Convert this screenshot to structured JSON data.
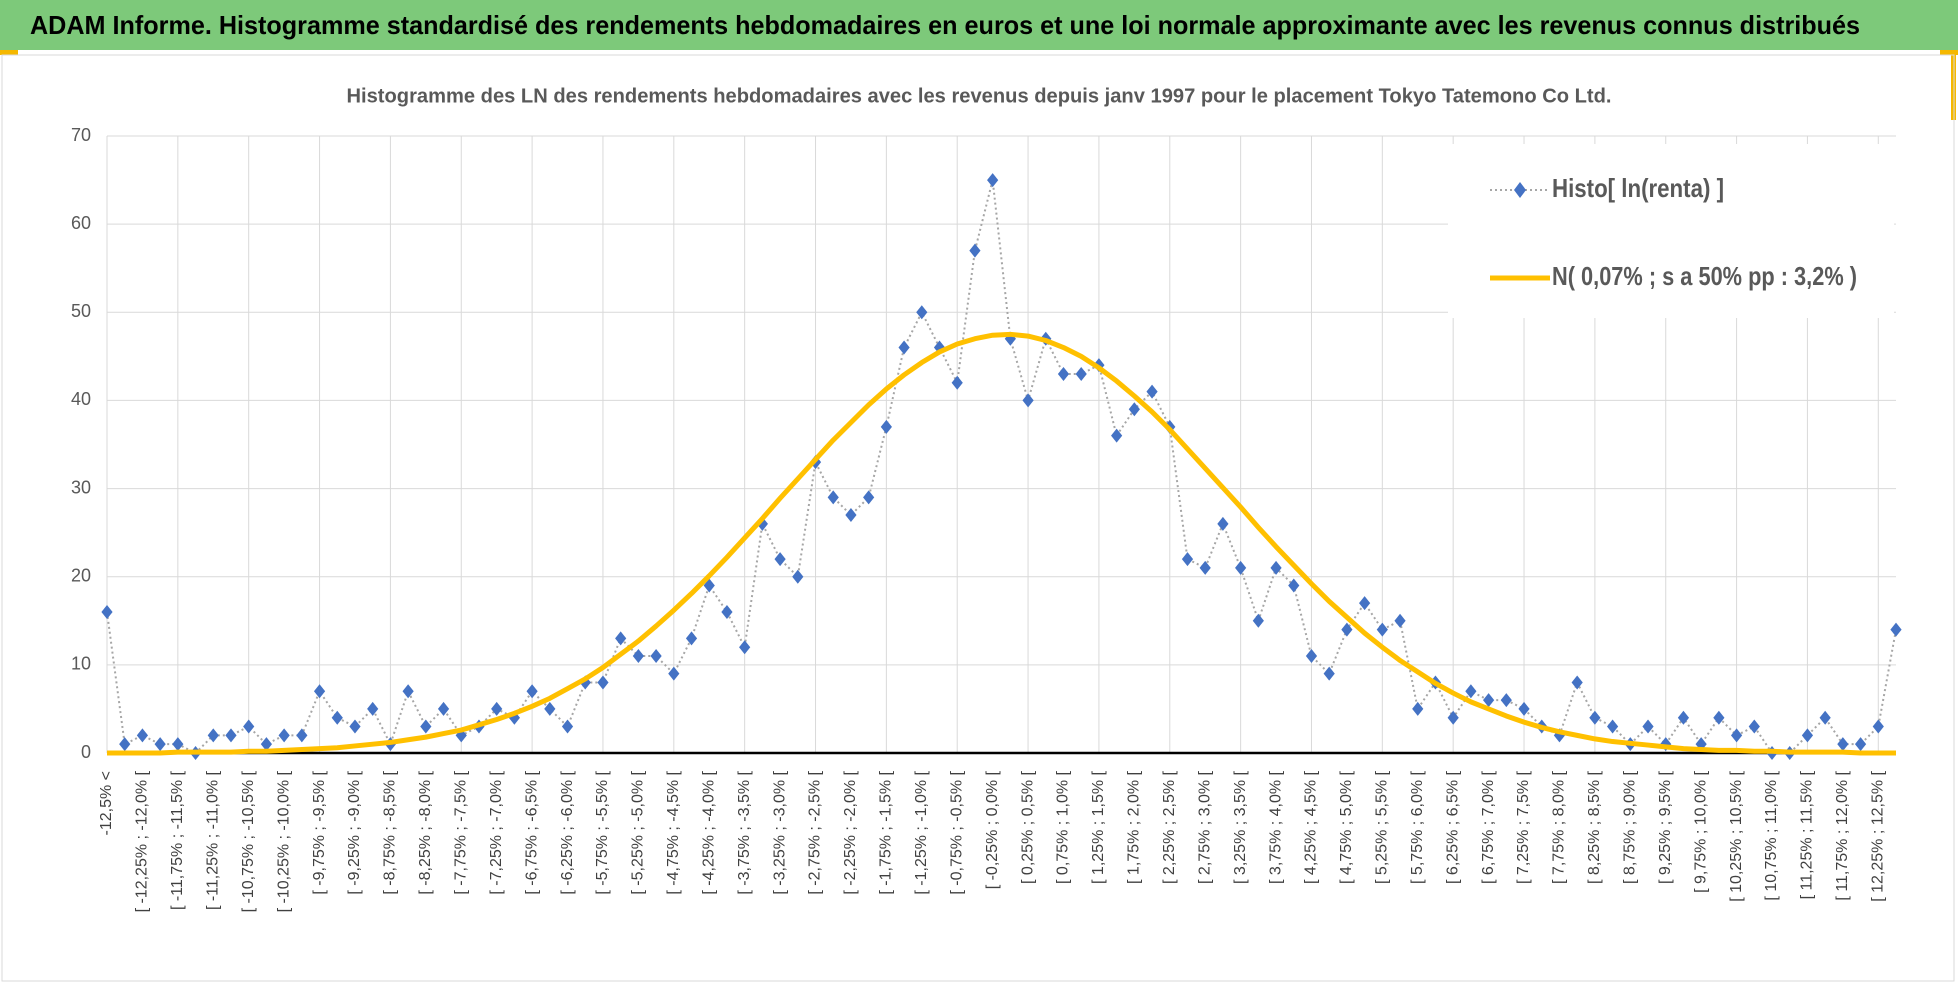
{
  "header": {
    "title": "ADAM Informe. Histogramme standardisé des rendements hebdomadaires en euros et une loi normale approximante avec les revenus connus distribués"
  },
  "chart_data": {
    "type": "line",
    "title": "Histogramme des LN des rendements hebdomadaires avec les revenus depuis janv 1997 pour le placement Tokyo Tatemono Co Ltd.",
    "categories": [
      "-12,5% <",
      null,
      "[ -12,25% ; -12,0% [",
      null,
      "[ -11,75% ; -11,5% [",
      null,
      "[ -11,25% ; -11,0% [",
      null,
      "[ -10,75% ; -10,5% [",
      null,
      "[ -10,25% ; -10,0% [",
      null,
      "[ -9,75% ; -9,5% [",
      null,
      "[ -9,25% ; -9,0% [",
      null,
      "[ -8,75% ; -8,5% [",
      null,
      "[ -8,25% ; -8,0% [",
      null,
      "[ -7,75% ; -7,5% [",
      null,
      "[ -7,25% ; -7,0% [",
      null,
      "[ -6,75% ; -6,5% [",
      null,
      "[ -6,25% ; -6,0% [",
      null,
      "[ -5,75% ; -5,5% [",
      null,
      "[ -5,25% ; -5,0% [",
      null,
      "[ -4,75% ; -4,5% [",
      null,
      "[ -4,25% ; -4,0% [",
      null,
      "[ -3,75% ; -3,5% [",
      null,
      "[ -3,25% ; -3,0% [",
      null,
      "[ -2,75% ; -2,5% [",
      null,
      "[ -2,25% ; -2,0% [",
      null,
      "[ -1,75% ; -1,5% [",
      null,
      "[ -1,25% ; -1,0% [",
      null,
      "[ -0,75% ; -0,5% [",
      null,
      "[ -0,25% ; 0,0% [",
      null,
      "[ 0,25% ; 0,5% [",
      null,
      "[ 0,75% ; 1,0% [",
      null,
      "[ 1,25% ; 1,5% [",
      null,
      "[ 1,75% ; 2,0% [",
      null,
      "[ 2,25% ; 2,5% [",
      null,
      "[ 2,75% ; 3,0% [",
      null,
      "[ 3,25% ; 3,5% [",
      null,
      "[ 3,75% ; 4,0% [",
      null,
      "[ 4,25% ; 4,5% [",
      null,
      "[ 4,75% ; 5,0% [",
      null,
      "[ 5,25% ; 5,5% [",
      null,
      "[ 5,75% ; 6,0% [",
      null,
      "[ 6,25% ; 6,5% [",
      null,
      "[ 6,75% ; 7,0% [",
      null,
      "[ 7,25% ; 7,5% [",
      null,
      "[ 7,75% ; 8,0% [",
      null,
      "[ 8,25% ; 8,5% [",
      null,
      "[ 8,75% ; 9,0% [",
      null,
      "[ 9,25% ; 9,5% [",
      null,
      "[ 9,75% ; 10,0% [",
      null,
      "[ 10,25% ; 10,5% [",
      null,
      "[ 10,75% ; 11,0% [",
      null,
      "[ 11,25% ; 11,5% [",
      null,
      "[ 11,75% ; 12,0% [",
      null,
      "[ 12,25% ; 12,5% [",
      null
    ],
    "series": [
      {
        "name": "Histo[ ln(renta) ]",
        "color": "#4472c4",
        "line_color": "#a6a6a6",
        "values": [
          16,
          1,
          2,
          1,
          1,
          0,
          2,
          2,
          3,
          1,
          2,
          2,
          7,
          4,
          3,
          5,
          1,
          7,
          3,
          5,
          2,
          3,
          5,
          4,
          7,
          5,
          3,
          8,
          8,
          13,
          11,
          11,
          9,
          13,
          19,
          16,
          12,
          26,
          22,
          20,
          33,
          29,
          27,
          29,
          37,
          46,
          50,
          46,
          42,
          57,
          65,
          47,
          40,
          47,
          43,
          43,
          44,
          36,
          39,
          41,
          37,
          22,
          21,
          26,
          21,
          15,
          21,
          19,
          11,
          9,
          14,
          17,
          14,
          15,
          5,
          8,
          4,
          7,
          6,
          6,
          5,
          3,
          2,
          8,
          4,
          3,
          1,
          3,
          1,
          4,
          1,
          4,
          2,
          3,
          0,
          0,
          2,
          4,
          1,
          1,
          3,
          14
        ]
      },
      {
        "name": "N( 0,07% ; s a 50% pp : 3,2% )",
        "color": "#ffc000",
        "values": [
          0.0,
          0.0,
          0.0,
          0.0,
          0.1,
          0.1,
          0.1,
          0.1,
          0.2,
          0.2,
          0.3,
          0.4,
          0.5,
          0.6,
          0.8,
          1.0,
          1.2,
          1.5,
          1.8,
          2.2,
          2.6,
          3.2,
          3.8,
          4.5,
          5.3,
          6.2,
          7.3,
          8.4,
          9.7,
          11.2,
          12.7,
          14.4,
          16.2,
          18.1,
          20.1,
          22.2,
          24.4,
          26.6,
          28.9,
          31.1,
          33.3,
          35.5,
          37.5,
          39.5,
          41.3,
          42.9,
          44.3,
          45.5,
          46.4,
          47.0,
          47.4,
          47.5,
          47.3,
          46.8,
          46.0,
          45.0,
          43.7,
          42.2,
          40.5,
          38.7,
          36.7,
          34.5,
          32.3,
          30.1,
          27.9,
          25.6,
          23.4,
          21.3,
          19.2,
          17.2,
          15.4,
          13.6,
          12.0,
          10.5,
          9.2,
          7.9,
          6.8,
          5.8,
          5.0,
          4.2,
          3.5,
          2.9,
          2.4,
          2.0,
          1.6,
          1.3,
          1.1,
          0.9,
          0.7,
          0.5,
          0.4,
          0.3,
          0.3,
          0.2,
          0.2,
          0.1,
          0.1,
          0.1,
          0.1,
          0.0,
          0.0,
          0.0
        ]
      }
    ],
    "ylim": [
      0,
      70
    ],
    "yticks": [
      0,
      10,
      20,
      30,
      40,
      50,
      60,
      70
    ],
    "grid": true,
    "legend": "upper right"
  }
}
